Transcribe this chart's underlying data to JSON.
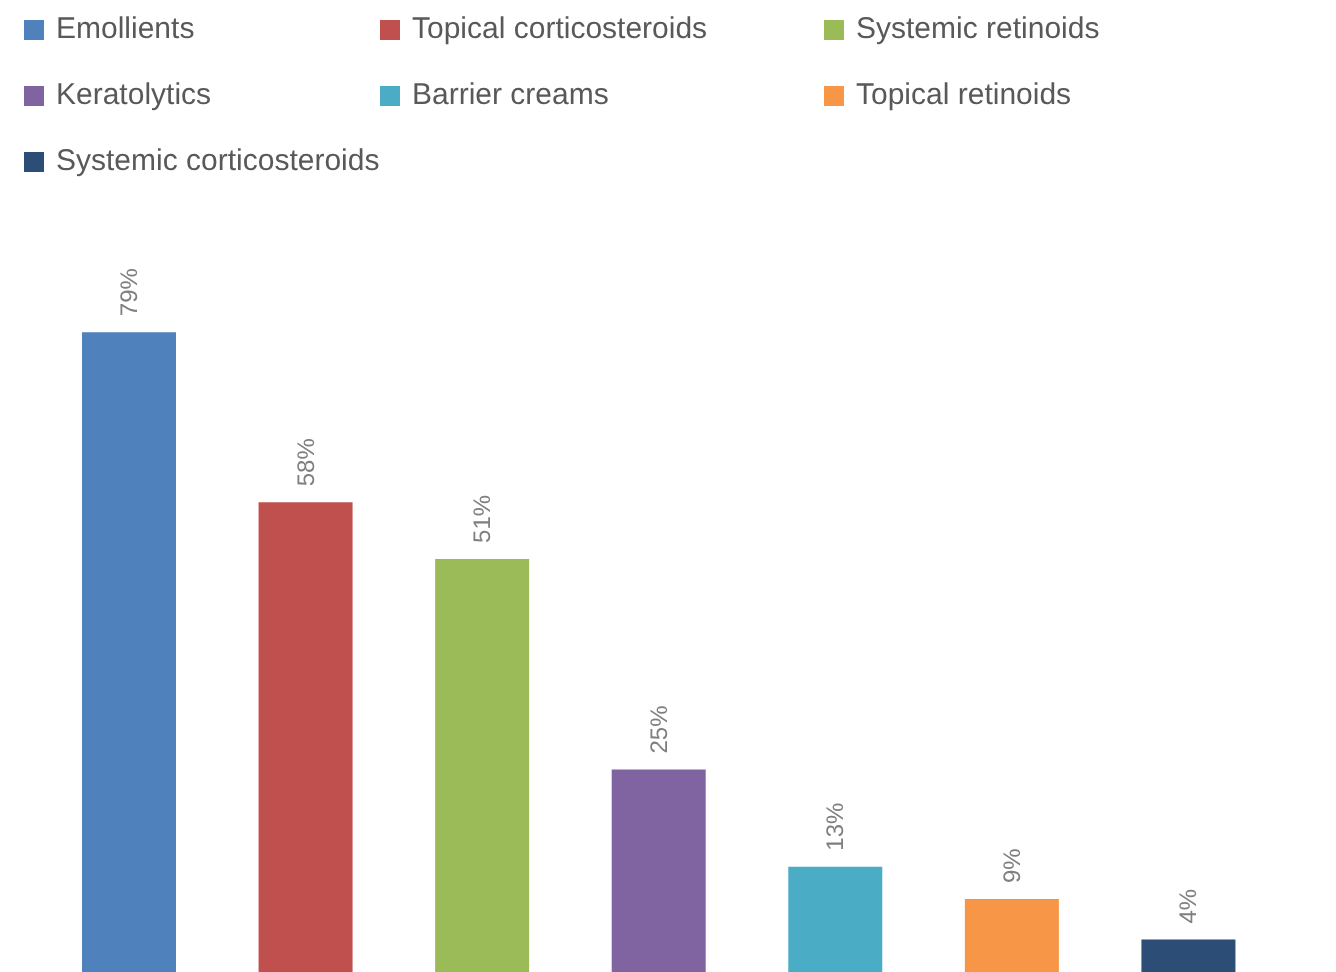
{
  "chart_data": {
    "type": "bar",
    "stacked": true,
    "categories": [
      null,
      null,
      null,
      null,
      null,
      null,
      null
    ],
    "series": [
      {
        "name": "Emollients",
        "color": "#4f81bd",
        "values": [
          79,
          null,
          null,
          null,
          null,
          null,
          null
        ],
        "value_labels": [
          "79%",
          null,
          null,
          null,
          null,
          null,
          null
        ]
      },
      {
        "name": "Topical corticosteroids",
        "color": "#c0504d",
        "values": [
          null,
          58,
          null,
          null,
          null,
          null,
          null
        ],
        "value_labels": [
          null,
          "58%",
          null,
          null,
          null,
          null,
          null
        ]
      },
      {
        "name": "Systemic retinoids",
        "color": "#9bbb59",
        "values": [
          null,
          null,
          51,
          null,
          null,
          null,
          null
        ],
        "value_labels": [
          null,
          null,
          "51%",
          null,
          null,
          null,
          null
        ]
      },
      {
        "name": "Keratolytics",
        "color": "#8064a2",
        "values": [
          null,
          null,
          null,
          25,
          null,
          null,
          null
        ],
        "value_labels": [
          null,
          null,
          null,
          "25%",
          null,
          null,
          null
        ]
      },
      {
        "name": "Barrier creams",
        "color": "#4bacc6",
        "values": [
          null,
          null,
          null,
          null,
          13,
          null,
          null
        ],
        "value_labels": [
          null,
          null,
          null,
          null,
          "13%",
          null,
          null
        ]
      },
      {
        "name": "Topical retinoids",
        "color": "#f79646",
        "values": [
          null,
          null,
          null,
          null,
          null,
          9,
          null
        ],
        "value_labels": [
          null,
          null,
          null,
          null,
          null,
          "9%",
          null
        ]
      },
      {
        "name": "Systemic corticosteroids",
        "color": "#2c4d75",
        "values": [
          null,
          null,
          null,
          null,
          null,
          null,
          4
        ],
        "value_labels": [
          null,
          null,
          null,
          null,
          null,
          null,
          "4%"
        ]
      }
    ],
    "tick_labels": false,
    "legend": "top",
    "grid": false
  }
}
